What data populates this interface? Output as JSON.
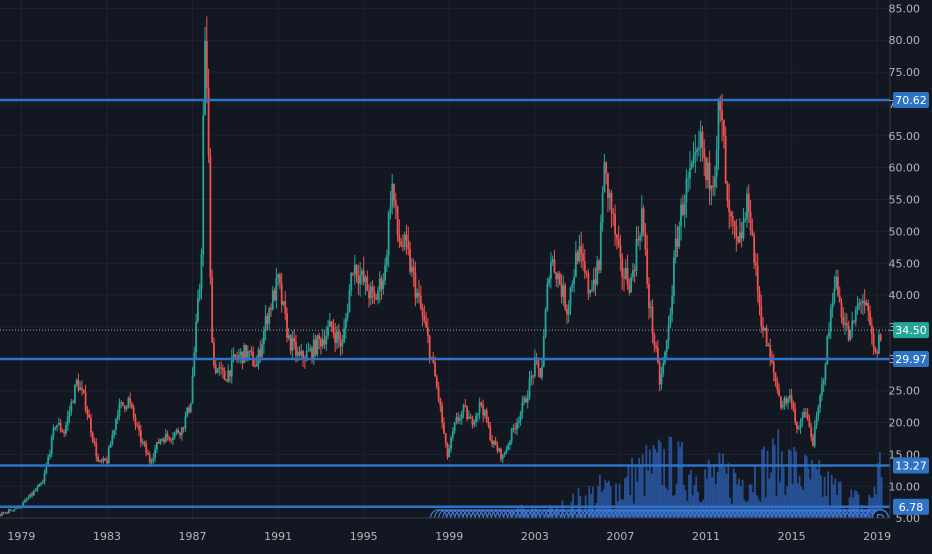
{
  "chart_data": {
    "type": "candlestick",
    "instrument_note": "",
    "title": "",
    "xlabel": "",
    "ylabel": "",
    "y_axis_position": "right",
    "ylim": [
      0,
      86
    ],
    "xlim": [
      1978.0,
      2019.6
    ],
    "grid": true,
    "y_ticks": [
      5,
      10,
      15,
      20,
      25,
      30,
      35,
      40,
      45,
      50,
      55,
      60,
      65,
      70,
      75,
      80,
      85
    ],
    "y_tick_labels": [
      "5.00",
      "10.00",
      "15.00",
      "20.00",
      "25.00",
      "30.00",
      "35.00",
      "40.00",
      "45.00",
      "50.00",
      "55.00",
      "60.00",
      "65.00",
      "70.00",
      "75.00",
      "80.00",
      "85.00"
    ],
    "x_ticks": [
      1979,
      1983,
      1987,
      1991,
      1995,
      1999,
      2003,
      2007,
      2011,
      2015,
      2019
    ],
    "x_tick_labels": [
      "1979",
      "1983",
      "1987",
      "1991",
      "1995",
      "1999",
      "2003",
      "2007",
      "2011",
      "2015",
      "2019"
    ],
    "horizontal_levels": [
      {
        "value": 70.62,
        "label": "70.62"
      },
      {
        "value": 29.97,
        "label": "29.97"
      },
      {
        "value": 13.27,
        "label": "13.27"
      },
      {
        "value": 6.78,
        "label": "6.78"
      }
    ],
    "last_price": {
      "value": 34.5,
      "label": "34.50"
    },
    "price_path": [
      [
        1978.0,
        5.5
      ],
      [
        1979.0,
        7.0
      ],
      [
        1980.0,
        10.5
      ],
      [
        1980.6,
        20.0
      ],
      [
        1981.0,
        18.5
      ],
      [
        1981.6,
        26.5
      ],
      [
        1982.0,
        23.0
      ],
      [
        1982.6,
        13.5
      ],
      [
        1983.0,
        14.0
      ],
      [
        1983.5,
        22.0
      ],
      [
        1984.0,
        23.5
      ],
      [
        1984.5,
        18.0
      ],
      [
        1985.0,
        14.0
      ],
      [
        1985.5,
        17.5
      ],
      [
        1986.0,
        18.0
      ],
      [
        1986.5,
        19.0
      ],
      [
        1986.9,
        23.0
      ],
      [
        1987.2,
        36.0
      ],
      [
        1987.4,
        44.0
      ],
      [
        1987.55,
        79.0
      ],
      [
        1987.7,
        72.0
      ],
      [
        1987.85,
        38.0
      ],
      [
        1988.0,
        29.0
      ],
      [
        1988.5,
        27.0
      ],
      [
        1989.0,
        30.0
      ],
      [
        1989.5,
        31.0
      ],
      [
        1990.0,
        29.0
      ],
      [
        1990.5,
        37.0
      ],
      [
        1991.0,
        42.0
      ],
      [
        1991.5,
        33.0
      ],
      [
        1992.0,
        30.0
      ],
      [
        1992.5,
        31.0
      ],
      [
        1993.0,
        33.0
      ],
      [
        1993.5,
        35.0
      ],
      [
        1994.0,
        32.0
      ],
      [
        1994.5,
        45.0
      ],
      [
        1995.0,
        42.0
      ],
      [
        1995.5,
        39.0
      ],
      [
        1996.0,
        44.0
      ],
      [
        1996.3,
        58.0
      ],
      [
        1996.6,
        49.0
      ],
      [
        1997.0,
        47.0
      ],
      [
        1997.5,
        40.0
      ],
      [
        1998.0,
        33.0
      ],
      [
        1998.5,
        24.0
      ],
      [
        1998.9,
        14.5
      ],
      [
        1999.3,
        20.0
      ],
      [
        1999.7,
        22.0
      ],
      [
        2000.0,
        20.0
      ],
      [
        2000.5,
        23.0
      ],
      [
        2001.0,
        17.0
      ],
      [
        2001.5,
        14.5
      ],
      [
        2002.0,
        19.0
      ],
      [
        2002.5,
        23.0
      ],
      [
        2003.0,
        29.0
      ],
      [
        2003.3,
        27.5
      ],
      [
        2003.7,
        46.0
      ],
      [
        2004.0,
        44.0
      ],
      [
        2004.5,
        38.0
      ],
      [
        2005.0,
        47.0
      ],
      [
        2005.5,
        41.0
      ],
      [
        2006.0,
        44.0
      ],
      [
        2006.2,
        60.0
      ],
      [
        2006.5,
        55.0
      ],
      [
        2007.0,
        44.0
      ],
      [
        2007.5,
        42.0
      ],
      [
        2008.0,
        53.0
      ],
      [
        2008.3,
        40.0
      ],
      [
        2008.6,
        32.0
      ],
      [
        2008.85,
        26.0
      ],
      [
        2009.2,
        33.0
      ],
      [
        2009.6,
        48.0
      ],
      [
        2010.0,
        56.0
      ],
      [
        2010.5,
        60.0
      ],
      [
        2010.8,
        64.0
      ],
      [
        2011.0,
        58.0
      ],
      [
        2011.4,
        60.0
      ],
      [
        2011.6,
        69.0
      ],
      [
        2011.8,
        65.0
      ],
      [
        2012.0,
        53.0
      ],
      [
        2012.5,
        47.0
      ],
      [
        2013.0,
        55.0
      ],
      [
        2013.3,
        44.0
      ],
      [
        2013.6,
        36.0
      ],
      [
        2014.0,
        30.0
      ],
      [
        2014.5,
        23.0
      ],
      [
        2015.0,
        24.0
      ],
      [
        2015.3,
        18.0
      ],
      [
        2015.6,
        22.0
      ],
      [
        2016.0,
        17.0
      ],
      [
        2016.4,
        25.0
      ],
      [
        2016.8,
        36.0
      ],
      [
        2017.0,
        43.0
      ],
      [
        2017.3,
        38.0
      ],
      [
        2017.7,
        33.0
      ],
      [
        2018.0,
        37.0
      ],
      [
        2018.3,
        40.0
      ],
      [
        2018.6,
        36.0
      ],
      [
        2018.9,
        30.0
      ],
      [
        2019.2,
        34.5
      ]
    ],
    "volume_envelope": [
      [
        1978.0,
        0.5
      ],
      [
        1986.8,
        0.8
      ],
      [
        1987.5,
        2.2
      ],
      [
        1988.0,
        0.9
      ],
      [
        1993.0,
        1.0
      ],
      [
        1996.0,
        1.4
      ],
      [
        1998.0,
        2.0
      ],
      [
        1999.5,
        2.8
      ],
      [
        2001.5,
        3.5
      ],
      [
        2002.0,
        6.0
      ],
      [
        2004.0,
        6.0
      ],
      [
        2005.5,
        9.0
      ],
      [
        2007.0,
        11.0
      ],
      [
        2008.0,
        13.5
      ],
      [
        2009.0,
        15.0
      ],
      [
        2010.5,
        13.0
      ],
      [
        2012.5,
        12.0
      ],
      [
        2014.5,
        15.5
      ],
      [
        2015.5,
        13.0
      ],
      [
        2017.0,
        10.0
      ],
      [
        2018.5,
        7.0
      ],
      [
        2019.2,
        15.5
      ]
    ],
    "period_badges": [
      "D"
    ]
  }
}
